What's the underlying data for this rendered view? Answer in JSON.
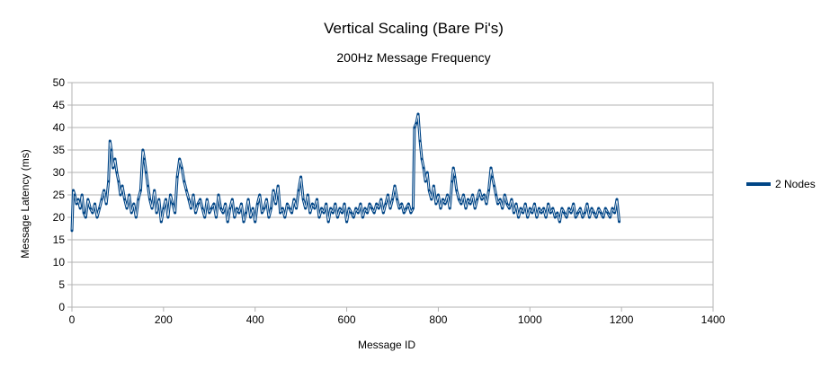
{
  "chart_data": {
    "type": "line",
    "title": "Vertical Scaling (Bare Pi's)",
    "subtitle": "200Hz Message Frequency",
    "xlabel": "Message ID",
    "ylabel": "Message Latency (ms)",
    "xlim": [
      0,
      1400
    ],
    "ylim": [
      0,
      50
    ],
    "xticks": [
      "0",
      "200",
      "400",
      "600",
      "800",
      "1000",
      "1200",
      "1400"
    ],
    "yticks": [
      "0",
      "5",
      "10",
      "15",
      "20",
      "25",
      "30",
      "35",
      "40",
      "45",
      "50"
    ],
    "grid": "horizontal",
    "legend": "right",
    "series": [
      {
        "name": "2 Nodes",
        "color": "#004586",
        "points": [
          [
            0,
            17
          ],
          [
            3,
            26
          ],
          [
            6,
            25
          ],
          [
            10,
            23
          ],
          [
            14,
            24
          ],
          [
            18,
            22
          ],
          [
            22,
            25
          ],
          [
            26,
            21
          ],
          [
            30,
            20
          ],
          [
            35,
            24
          ],
          [
            40,
            22
          ],
          [
            45,
            21
          ],
          [
            50,
            23
          ],
          [
            55,
            20
          ],
          [
            60,
            22
          ],
          [
            65,
            24
          ],
          [
            70,
            26
          ],
          [
            75,
            23
          ],
          [
            80,
            28
          ],
          [
            83,
            37
          ],
          [
            86,
            35
          ],
          [
            90,
            31
          ],
          [
            94,
            33
          ],
          [
            98,
            30
          ],
          [
            102,
            28
          ],
          [
            106,
            25
          ],
          [
            110,
            27
          ],
          [
            115,
            24
          ],
          [
            120,
            22
          ],
          [
            125,
            25
          ],
          [
            130,
            21
          ],
          [
            135,
            23
          ],
          [
            140,
            20
          ],
          [
            145,
            24
          ],
          [
            150,
            26
          ],
          [
            155,
            35
          ],
          [
            158,
            33
          ],
          [
            162,
            30
          ],
          [
            166,
            27
          ],
          [
            170,
            24
          ],
          [
            175,
            22
          ],
          [
            180,
            26
          ],
          [
            185,
            21
          ],
          [
            190,
            24
          ],
          [
            195,
            19
          ],
          [
            200,
            22
          ],
          [
            205,
            24
          ],
          [
            210,
            20
          ],
          [
            215,
            25
          ],
          [
            220,
            23
          ],
          [
            225,
            21
          ],
          [
            230,
            29
          ],
          [
            235,
            33
          ],
          [
            240,
            31
          ],
          [
            245,
            28
          ],
          [
            250,
            26
          ],
          [
            255,
            24
          ],
          [
            260,
            22
          ],
          [
            265,
            25
          ],
          [
            270,
            21
          ],
          [
            275,
            23
          ],
          [
            280,
            24
          ],
          [
            285,
            22
          ],
          [
            290,
            20
          ],
          [
            295,
            24
          ],
          [
            300,
            21
          ],
          [
            305,
            22
          ],
          [
            310,
            23
          ],
          [
            315,
            20
          ],
          [
            320,
            25
          ],
          [
            325,
            22
          ],
          [
            330,
            21
          ],
          [
            335,
            23
          ],
          [
            340,
            19
          ],
          [
            345,
            22
          ],
          [
            350,
            24
          ],
          [
            355,
            20
          ],
          [
            360,
            22
          ],
          [
            365,
            21
          ],
          [
            370,
            23
          ],
          [
            375,
            19
          ],
          [
            380,
            21
          ],
          [
            385,
            24
          ],
          [
            390,
            20
          ],
          [
            395,
            22
          ],
          [
            400,
            19
          ],
          [
            405,
            23
          ],
          [
            410,
            25
          ],
          [
            415,
            21
          ],
          [
            420,
            22
          ],
          [
            425,
            24
          ],
          [
            430,
            20
          ],
          [
            435,
            22
          ],
          [
            440,
            26
          ],
          [
            445,
            23
          ],
          [
            450,
            27
          ],
          [
            455,
            21
          ],
          [
            460,
            22
          ],
          [
            465,
            20
          ],
          [
            470,
            23
          ],
          [
            475,
            22
          ],
          [
            480,
            21
          ],
          [
            485,
            24
          ],
          [
            490,
            22
          ],
          [
            495,
            26
          ],
          [
            500,
            29
          ],
          [
            505,
            24
          ],
          [
            510,
            22
          ],
          [
            515,
            25
          ],
          [
            520,
            21
          ],
          [
            525,
            23
          ],
          [
            530,
            22
          ],
          [
            535,
            24
          ],
          [
            540,
            20
          ],
          [
            545,
            22
          ],
          [
            550,
            21
          ],
          [
            555,
            23
          ],
          [
            560,
            19
          ],
          [
            565,
            22
          ],
          [
            570,
            21
          ],
          [
            575,
            23
          ],
          [
            580,
            20
          ],
          [
            585,
            22
          ],
          [
            590,
            21
          ],
          [
            595,
            23
          ],
          [
            600,
            19
          ],
          [
            605,
            22
          ],
          [
            610,
            21
          ],
          [
            615,
            20
          ],
          [
            620,
            22
          ],
          [
            625,
            21
          ],
          [
            630,
            23
          ],
          [
            635,
            20
          ],
          [
            640,
            22
          ],
          [
            645,
            21
          ],
          [
            650,
            23
          ],
          [
            655,
            22
          ],
          [
            660,
            21
          ],
          [
            665,
            23
          ],
          [
            670,
            22
          ],
          [
            675,
            24
          ],
          [
            680,
            21
          ],
          [
            685,
            23
          ],
          [
            690,
            25
          ],
          [
            695,
            22
          ],
          [
            700,
            24
          ],
          [
            705,
            27
          ],
          [
            710,
            24
          ],
          [
            715,
            22
          ],
          [
            720,
            23
          ],
          [
            725,
            21
          ],
          [
            730,
            22
          ],
          [
            735,
            23
          ],
          [
            740,
            21
          ],
          [
            745,
            22
          ],
          [
            748,
            40
          ],
          [
            752,
            41
          ],
          [
            756,
            43
          ],
          [
            760,
            37
          ],
          [
            764,
            33
          ],
          [
            768,
            31
          ],
          [
            772,
            28
          ],
          [
            776,
            30
          ],
          [
            780,
            26
          ],
          [
            785,
            24
          ],
          [
            790,
            27
          ],
          [
            795,
            23
          ],
          [
            800,
            25
          ],
          [
            805,
            22
          ],
          [
            810,
            24
          ],
          [
            815,
            23
          ],
          [
            820,
            25
          ],
          [
            825,
            22
          ],
          [
            830,
            28
          ],
          [
            833,
            31
          ],
          [
            836,
            29
          ],
          [
            840,
            26
          ],
          [
            845,
            24
          ],
          [
            850,
            23
          ],
          [
            855,
            25
          ],
          [
            860,
            22
          ],
          [
            865,
            24
          ],
          [
            870,
            23
          ],
          [
            875,
            25
          ],
          [
            880,
            22
          ],
          [
            885,
            24
          ],
          [
            890,
            26
          ],
          [
            895,
            24
          ],
          [
            900,
            25
          ],
          [
            905,
            23
          ],
          [
            910,
            26
          ],
          [
            915,
            31
          ],
          [
            918,
            29
          ],
          [
            922,
            27
          ],
          [
            926,
            25
          ],
          [
            930,
            23
          ],
          [
            935,
            24
          ],
          [
            940,
            22
          ],
          [
            945,
            25
          ],
          [
            950,
            23
          ],
          [
            955,
            22
          ],
          [
            960,
            24
          ],
          [
            965,
            21
          ],
          [
            970,
            23
          ],
          [
            975,
            20
          ],
          [
            980,
            22
          ],
          [
            985,
            21
          ],
          [
            990,
            23
          ],
          [
            995,
            20
          ],
          [
            1000,
            22
          ],
          [
            1005,
            21
          ],
          [
            1010,
            23
          ],
          [
            1015,
            20
          ],
          [
            1020,
            22
          ],
          [
            1025,
            21
          ],
          [
            1030,
            22
          ],
          [
            1035,
            20
          ],
          [
            1040,
            23
          ],
          [
            1045,
            21
          ],
          [
            1050,
            22
          ],
          [
            1055,
            20
          ],
          [
            1060,
            21
          ],
          [
            1065,
            19
          ],
          [
            1070,
            22
          ],
          [
            1075,
            21
          ],
          [
            1080,
            20
          ],
          [
            1085,
            22
          ],
          [
            1090,
            21
          ],
          [
            1095,
            23
          ],
          [
            1100,
            20
          ],
          [
            1105,
            21
          ],
          [
            1110,
            22
          ],
          [
            1115,
            20
          ],
          [
            1120,
            21
          ],
          [
            1125,
            23
          ],
          [
            1130,
            20
          ],
          [
            1135,
            22
          ],
          [
            1140,
            21
          ],
          [
            1145,
            20
          ],
          [
            1150,
            22
          ],
          [
            1155,
            21
          ],
          [
            1160,
            20
          ],
          [
            1165,
            22
          ],
          [
            1170,
            21
          ],
          [
            1175,
            20
          ],
          [
            1180,
            22
          ],
          [
            1185,
            21
          ],
          [
            1190,
            24
          ],
          [
            1195,
            19
          ]
        ]
      }
    ]
  }
}
